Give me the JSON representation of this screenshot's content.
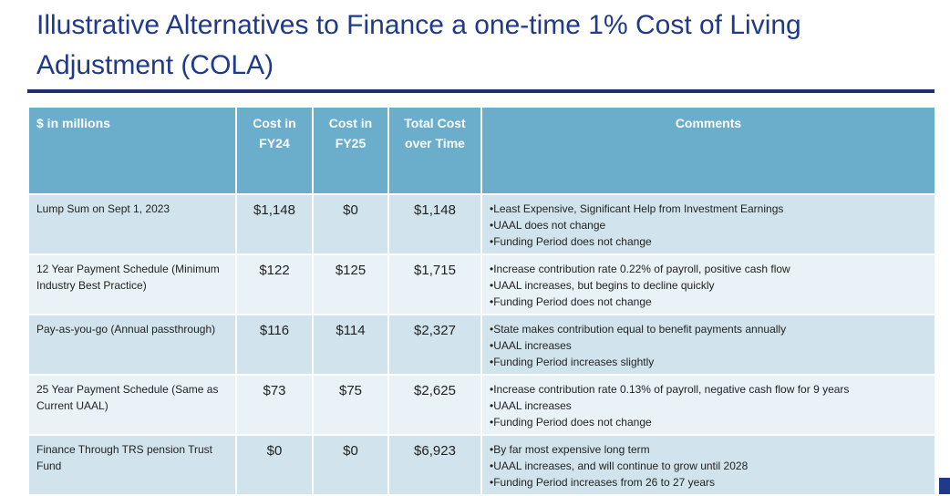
{
  "header": {
    "title": "Illustrative Alternatives to Finance a one-time 1% Cost of Living Adjustment (COLA)"
  },
  "table": {
    "columns": [
      "$ in millions",
      "Cost in FY24",
      "Cost in FY25",
      "Total Cost over Time",
      "Comments"
    ],
    "rows": [
      {
        "label": "Lump Sum on Sept 1, 2023",
        "fy24": "$1,148",
        "fy25": "$0",
        "total": "$1,148",
        "comments": [
          "Least Expensive, Significant Help from Investment Earnings",
          "UAAL does not change",
          "Funding Period does not change"
        ]
      },
      {
        "label": "12 Year Payment Schedule (Minimum Industry Best Practice)",
        "fy24": "$122",
        "fy25": "$125",
        "total": "$1,715",
        "comments": [
          "Increase contribution rate 0.22% of payroll, positive cash flow",
          "UAAL increases, but begins to decline quickly",
          "Funding Period does not change"
        ]
      },
      {
        "label": "Pay-as-you-go (Annual passthrough)",
        "fy24": "$116",
        "fy25": "$114",
        "total": "$2,327",
        "comments": [
          "State makes contribution equal to benefit payments annually",
          "UAAL increases",
          "Funding Period increases slightly"
        ]
      },
      {
        "label": "25 Year Payment Schedule (Same as Current UAAL)",
        "fy24": "$73",
        "fy25": "$75",
        "total": "$2,625",
        "comments": [
          "Increase contribution rate 0.13% of payroll, negative cash flow for 9 years",
          "UAAL increases",
          "Funding Period does not change"
        ]
      },
      {
        "label": "Finance Through TRS pension Trust Fund",
        "fy24": "$0",
        "fy25": "$0",
        "total": "$6,923",
        "comments": [
          "By far most expensive long term",
          "UAAL increases, and will continue to grow until 2028",
          "Funding Period increases from 26 to 27 years"
        ]
      }
    ]
  }
}
